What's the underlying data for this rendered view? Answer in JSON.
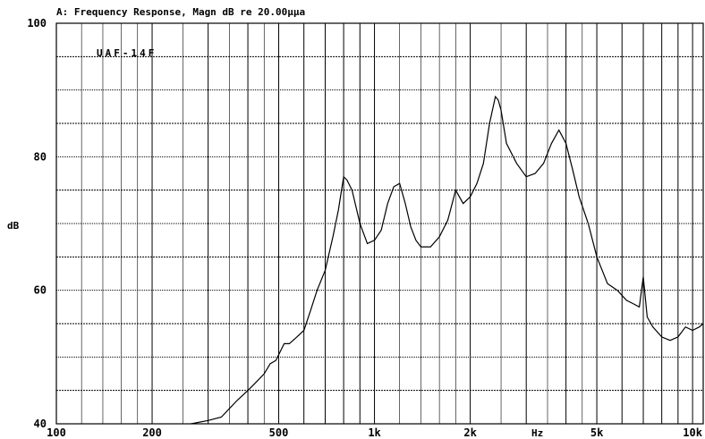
{
  "chart_data": {
    "type": "line",
    "title": "A: Frequency Response, Magn dB re 20.00µµa",
    "annotation": "UAF-14F",
    "xlabel": "Hz",
    "ylabel": "dB",
    "x_scale": "log",
    "xlim": [
      100,
      10800
    ],
    "ylim": [
      40,
      100
    ],
    "grid": true,
    "x_tick_labels": [
      {
        "value": 100,
        "label": "100"
      },
      {
        "value": 200,
        "label": "200"
      },
      {
        "value": 500,
        "label": "500"
      },
      {
        "value": 1000,
        "label": "1k"
      },
      {
        "value": 2000,
        "label": "2k"
      },
      {
        "value": 5000,
        "label": "5k"
      },
      {
        "value": 10000,
        "label": "10k"
      }
    ],
    "y_tick_labels": [
      {
        "value": 100,
        "label": "100"
      },
      {
        "value": 80,
        "label": "80"
      },
      {
        "value": 60,
        "label": "60"
      },
      {
        "value": 40,
        "label": "40"
      }
    ],
    "series": [
      {
        "color": "#000000",
        "x": [
          265,
          300,
          330,
          370,
          400,
          420,
          450,
          470,
          490,
          520,
          540,
          570,
          600,
          630,
          660,
          700,
          740,
          770,
          800,
          820,
          850,
          900,
          950,
          1000,
          1050,
          1100,
          1150,
          1200,
          1250,
          1300,
          1350,
          1400,
          1450,
          1500,
          1600,
          1700,
          1800,
          1900,
          2000,
          2100,
          2200,
          2300,
          2400,
          2450,
          2500,
          2600,
          2800,
          3000,
          3200,
          3400,
          3600,
          3800,
          4000,
          4200,
          4400,
          4700,
          5000,
          5400,
          5800,
          6200,
          6500,
          6800,
          7000,
          7200,
          7500,
          8000,
          8500,
          9000,
          9500,
          10000,
          10500,
          10800
        ],
        "y": [
          40,
          40.5,
          41,
          43.5,
          45,
          46,
          47.5,
          49,
          49.5,
          52,
          52,
          53,
          54,
          57,
          60,
          63,
          68,
          72,
          77,
          76.5,
          75,
          70,
          67,
          67.5,
          69,
          73,
          75.5,
          76,
          73,
          69.5,
          67.5,
          66.5,
          66.5,
          66.5,
          68,
          70.5,
          75,
          73,
          74,
          76,
          79,
          85,
          89,
          88.5,
          87,
          82,
          79,
          77,
          77.5,
          79,
          82,
          84,
          82,
          78,
          74,
          70,
          65,
          61,
          60,
          58.5,
          58,
          57.5,
          62,
          56,
          54.5,
          53,
          52.5,
          53,
          54.5,
          54,
          54.5,
          55
        ]
      }
    ]
  }
}
